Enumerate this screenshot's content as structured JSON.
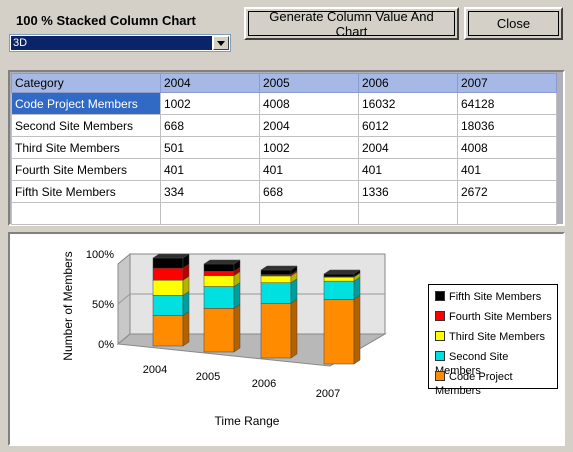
{
  "header": {
    "title": "100 % Stacked Column Chart"
  },
  "combo": {
    "value": "3D"
  },
  "buttons": {
    "generate": "Generate Column Value And Chart",
    "close": "Close"
  },
  "grid": {
    "columns": [
      "Category",
      "2004",
      "2005",
      "2006",
      "2007"
    ],
    "rows": [
      [
        "Code Project Members",
        "1002",
        "4008",
        "16032",
        "64128"
      ],
      [
        "Second Site Members",
        "668",
        "2004",
        "6012",
        "18036"
      ],
      [
        "Third Site Members",
        "501",
        "1002",
        "2004",
        "4008"
      ],
      [
        "Fourth Site Members",
        "401",
        "401",
        "401",
        "401"
      ],
      [
        "Fifth Site Members",
        "334",
        "668",
        "1336",
        "2672"
      ]
    ]
  },
  "chart_data": {
    "type": "bar",
    "stacked": "percent",
    "categories": [
      "2004",
      "2005",
      "2006",
      "2007"
    ],
    "series": [
      {
        "name": "Code Project Members",
        "values": [
          1002,
          4008,
          16032,
          64128
        ],
        "color": "#ff8c00"
      },
      {
        "name": "Second Site Members",
        "values": [
          668,
          2004,
          6012,
          18036
        ],
        "color": "#00e0e0"
      },
      {
        "name": "Third Site Members",
        "values": [
          501,
          1002,
          2004,
          4008
        ],
        "color": "#ffff00"
      },
      {
        "name": "Fourth Site Members",
        "values": [
          401,
          401,
          401,
          401
        ],
        "color": "#ff0000"
      },
      {
        "name": "Fifth Site Members",
        "values": [
          334,
          668,
          1336,
          2672
        ],
        "color": "#000000"
      }
    ],
    "xlabel": "Time Range",
    "ylabel": "Number of Members",
    "yticks": [
      "0%",
      "50%",
      "100%"
    ],
    "legend_position": "right"
  }
}
